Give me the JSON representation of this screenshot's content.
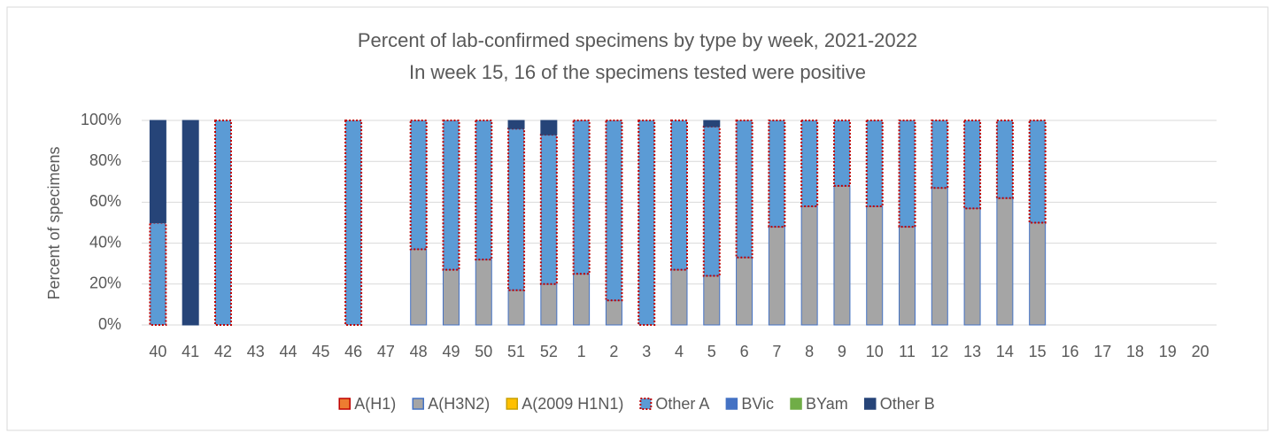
{
  "chart_data": {
    "type": "stacked_bar",
    "title": "Percent of lab-confirmed specimens by type by week, 2021-2022",
    "subtitle": "In week 15, 16 of the specimens tested were positive",
    "y_label": "Percent of specimens",
    "categories": [
      "40",
      "41",
      "42",
      "43",
      "44",
      "45",
      "46",
      "47",
      "48",
      "49",
      "50",
      "51",
      "52",
      "1",
      "2",
      "3",
      "4",
      "5",
      "6",
      "7",
      "8",
      "9",
      "10",
      "11",
      "12",
      "13",
      "14",
      "15",
      "16",
      "17",
      "18",
      "19",
      "20"
    ],
    "series": [
      {
        "name": "A(H1)",
        "color": "#ed7d31",
        "border": "#c00000",
        "dotted": false,
        "values": [
          0,
          0,
          0,
          0,
          0,
          0,
          0,
          0,
          0,
          0,
          0,
          0,
          0,
          0,
          0,
          0,
          0,
          0,
          0,
          0,
          0,
          0,
          0,
          0,
          0,
          0,
          0,
          0,
          null,
          null,
          null,
          null,
          null
        ]
      },
      {
        "name": "A(H3N2)",
        "color": "#a5a5a5",
        "border": "#4472c4",
        "dotted": false,
        "values": [
          0,
          0,
          0,
          0,
          0,
          0,
          0,
          0,
          37,
          27,
          32,
          17,
          20,
          25,
          12,
          0,
          27,
          24,
          33,
          48,
          58,
          68,
          58,
          48,
          67,
          57,
          62,
          50,
          null,
          null,
          null,
          null,
          null
        ]
      },
      {
        "name": "A(2009 H1N1)",
        "color": "#ffc000",
        "border": "#c9a000",
        "dotted": false,
        "values": [
          0,
          0,
          0,
          0,
          0,
          0,
          0,
          0,
          0,
          0,
          0,
          0,
          0,
          0,
          0,
          0,
          0,
          0,
          0,
          0,
          0,
          0,
          0,
          0,
          0,
          0,
          0,
          0,
          null,
          null,
          null,
          null,
          null
        ]
      },
      {
        "name": "Other A",
        "color": "#5b9bd5",
        "border": "#c00000",
        "dotted": true,
        "values": [
          50,
          0,
          100,
          0,
          0,
          0,
          100,
          0,
          63,
          73,
          68,
          79,
          73,
          75,
          88,
          100,
          73,
          73,
          67,
          52,
          42,
          32,
          42,
          52,
          33,
          43,
          38,
          50,
          null,
          null,
          null,
          null,
          null
        ]
      },
      {
        "name": "BVic",
        "color": "#4472c4",
        "border": "#4472c4",
        "dotted": false,
        "values": [
          0,
          0,
          0,
          0,
          0,
          0,
          0,
          0,
          0,
          0,
          0,
          0,
          0,
          0,
          0,
          0,
          0,
          0,
          0,
          0,
          0,
          0,
          0,
          0,
          0,
          0,
          0,
          0,
          null,
          null,
          null,
          null,
          null
        ]
      },
      {
        "name": "BYam",
        "color": "#70ad47",
        "border": "#70ad47",
        "dotted": false,
        "values": [
          0,
          0,
          0,
          0,
          0,
          0,
          0,
          0,
          0,
          0,
          0,
          0,
          0,
          0,
          0,
          0,
          0,
          0,
          0,
          0,
          0,
          0,
          0,
          0,
          0,
          0,
          0,
          0,
          null,
          null,
          null,
          null,
          null
        ]
      },
      {
        "name": "Other B",
        "color": "#264478",
        "border": "#264478",
        "dotted": false,
        "values": [
          50,
          100,
          0,
          0,
          0,
          0,
          0,
          0,
          0,
          0,
          0,
          4,
          7,
          0,
          0,
          0,
          0,
          3,
          0,
          0,
          0,
          0,
          0,
          0,
          0,
          0,
          0,
          0,
          null,
          null,
          null,
          null,
          null
        ]
      }
    ],
    "ylim": [
      0,
      100
    ],
    "yticks": [
      {
        "value": 0,
        "label": "0%"
      },
      {
        "value": 20,
        "label": "20%"
      },
      {
        "value": 40,
        "label": "40%"
      },
      {
        "value": 60,
        "label": "60%"
      },
      {
        "value": 80,
        "label": "80%"
      },
      {
        "value": 100,
        "label": "100%"
      }
    ],
    "grid": true,
    "legend": "bottom"
  }
}
